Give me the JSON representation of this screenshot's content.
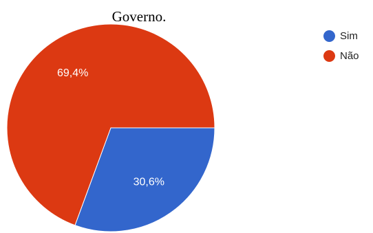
{
  "chart_data": {
    "type": "pie",
    "title": "Governo.",
    "slices": [
      {
        "name": "Sim",
        "value": 30.6,
        "label": "30,6%",
        "color": "#3366cc"
      },
      {
        "name": "Não",
        "value": 69.4,
        "label": "69,4%",
        "color": "#dc3912"
      }
    ],
    "start_angle_deg": 90,
    "direction": "clockwise",
    "legend_position": "top-right"
  }
}
